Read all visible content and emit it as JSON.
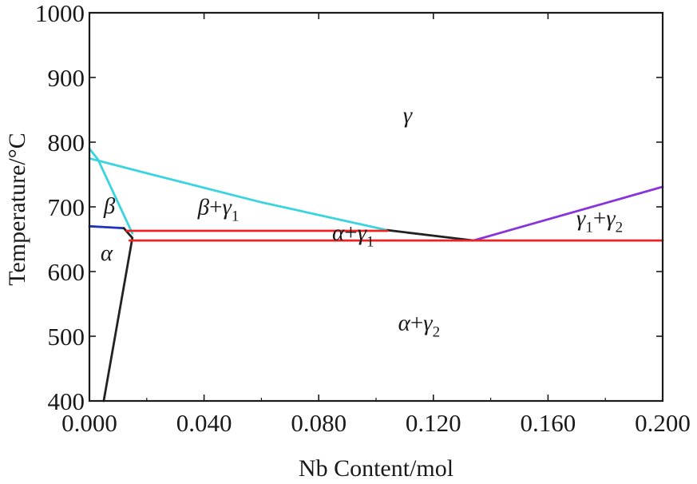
{
  "chart_data": {
    "type": "line",
    "title": "",
    "xlabel": "Nb Content/mol",
    "ylabel": "Temperature/°C",
    "xlim": [
      0.0,
      0.2
    ],
    "ylim": [
      400,
      1000
    ],
    "x_ticks": [
      {
        "value": 0.0,
        "label": "0.000"
      },
      {
        "value": 0.04,
        "label": "0.040"
      },
      {
        "value": 0.08,
        "label": "0.080"
      },
      {
        "value": 0.12,
        "label": "0.120"
      },
      {
        "value": 0.16,
        "label": "0.160"
      },
      {
        "value": 0.2,
        "label": "0.200"
      }
    ],
    "y_ticks": [
      {
        "value": 400,
        "label": "400"
      },
      {
        "value": 500,
        "label": "500"
      },
      {
        "value": 600,
        "label": "600"
      },
      {
        "value": 700,
        "label": "700"
      },
      {
        "value": 800,
        "label": "800"
      },
      {
        "value": 900,
        "label": "900"
      },
      {
        "value": 1000,
        "label": "1000"
      }
    ],
    "grid": false,
    "series": [
      {
        "color": "#39d4e0",
        "points": [
          [
            0.0,
            790
          ],
          [
            0.003,
            773
          ],
          [
            0.015,
            659
          ]
        ]
      },
      {
        "color": "#39d4e0",
        "points": [
          [
            0.0,
            775
          ],
          [
            0.02,
            752
          ],
          [
            0.06,
            707
          ],
          [
            0.104,
            664
          ]
        ]
      },
      {
        "color": "#2233bb",
        "points": [
          [
            0.0,
            670
          ],
          [
            0.012,
            667
          ]
        ]
      },
      {
        "color": "#222222",
        "points": [
          [
            0.012,
            667
          ],
          [
            0.015,
            652
          ],
          [
            0.005,
            400
          ]
        ]
      },
      {
        "color": "#222222",
        "points": [
          [
            0.104,
            664
          ],
          [
            0.134,
            648
          ]
        ]
      },
      {
        "color": "#8833dd",
        "points": [
          [
            0.134,
            648
          ],
          [
            0.2,
            731
          ]
        ]
      },
      {
        "color": "#ee2222",
        "points": [
          [
            0.013,
            663
          ],
          [
            0.104,
            663
          ]
        ]
      },
      {
        "color": "#ee2222",
        "points": [
          [
            0.014,
            648
          ],
          [
            0.2,
            648
          ]
        ]
      }
    ],
    "regions": [
      {
        "id": "gamma",
        "x": 0.111,
        "y": 830,
        "parts": [
          {
            "t": "γ",
            "sub": false
          }
        ]
      },
      {
        "id": "beta",
        "x": 0.007,
        "y": 690,
        "parts": [
          {
            "t": "β",
            "sub": false
          }
        ]
      },
      {
        "id": "beta-gamma1",
        "x": 0.045,
        "y": 688,
        "parts": [
          {
            "t": "β",
            "sub": false
          },
          {
            "t": "+",
            "sub": false,
            "plain": true
          },
          {
            "t": "γ",
            "sub": false
          },
          {
            "t": "1",
            "sub": true
          }
        ]
      },
      {
        "id": "alpha",
        "x": 0.006,
        "y": 617,
        "parts": [
          {
            "t": "α",
            "sub": false
          }
        ]
      },
      {
        "id": "alpha-gamma1",
        "x": 0.092,
        "y": 649,
        "parts": [
          {
            "t": "α",
            "sub": false
          },
          {
            "t": "+",
            "sub": false,
            "plain": true
          },
          {
            "t": "γ",
            "sub": false
          },
          {
            "t": "1",
            "sub": true
          }
        ]
      },
      {
        "id": "gamma1-gamma2",
        "x": 0.178,
        "y": 671,
        "parts": [
          {
            "t": "γ",
            "sub": false
          },
          {
            "t": "1",
            "sub": true
          },
          {
            "t": "+",
            "sub": false,
            "plain": true
          },
          {
            "t": "γ",
            "sub": false
          },
          {
            "t": "2",
            "sub": true
          }
        ]
      },
      {
        "id": "alpha-gamma2",
        "x": 0.115,
        "y": 509,
        "parts": [
          {
            "t": "α",
            "sub": false
          },
          {
            "t": "+",
            "sub": false,
            "plain": true
          },
          {
            "t": "γ",
            "sub": false
          },
          {
            "t": "2",
            "sub": true
          }
        ]
      }
    ]
  }
}
